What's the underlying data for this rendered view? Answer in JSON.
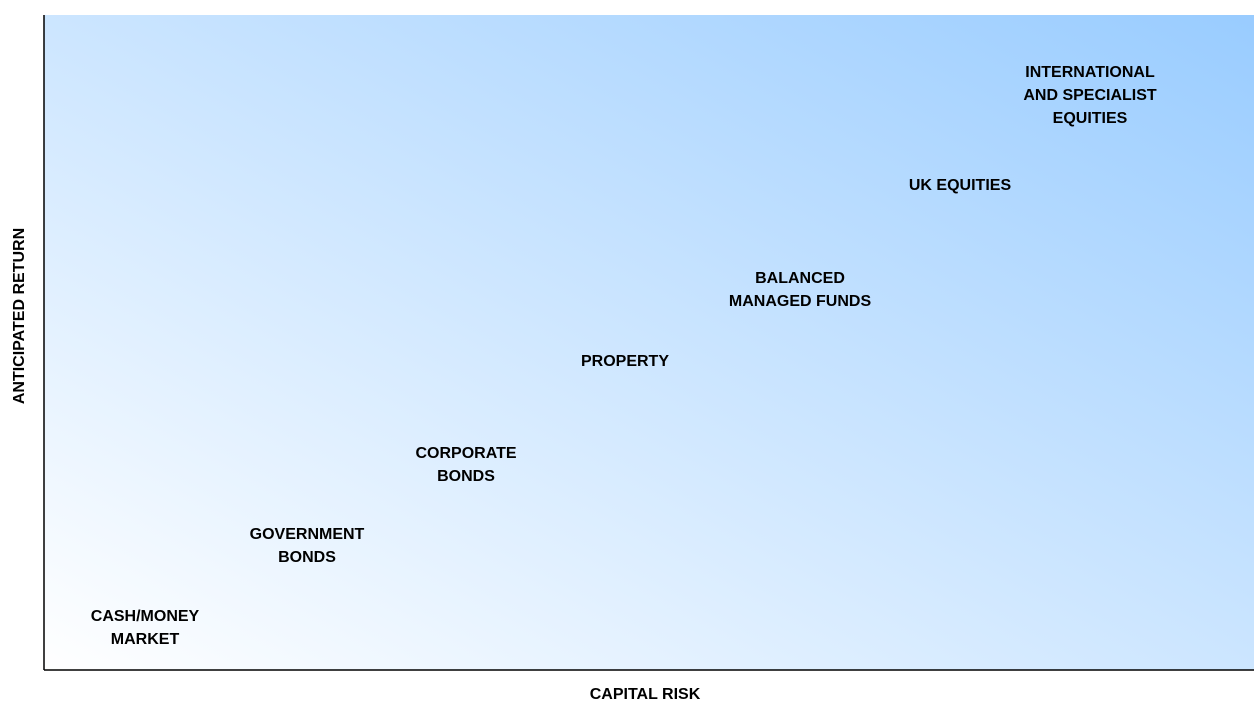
{
  "axes": {
    "x_label": "CAPITAL RISK",
    "y_label": "ANTICIPATED RETURN"
  },
  "assets": [
    {
      "lines": [
        "CASH/MONEY",
        "MARKET"
      ]
    },
    {
      "lines": [
        "GOVERNMENT",
        "BONDS"
      ]
    },
    {
      "lines": [
        "CORPORATE",
        "BONDS"
      ]
    },
    {
      "lines": [
        "PROPERTY"
      ]
    },
    {
      "lines": [
        "BALANCED",
        "MANAGED FUNDS"
      ]
    },
    {
      "lines": [
        "UK EQUITIES"
      ]
    },
    {
      "lines": [
        "INTERNATIONAL",
        "AND SPECIALIST",
        "EQUITIES"
      ]
    }
  ]
}
